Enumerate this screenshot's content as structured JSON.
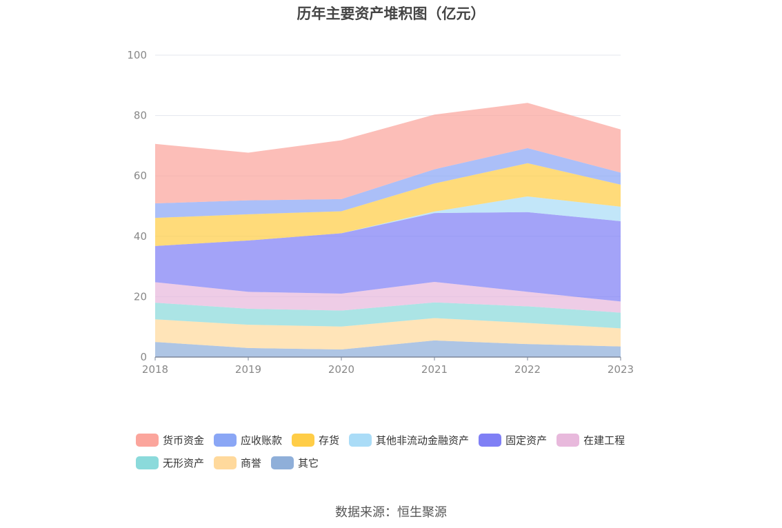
{
  "chart_data": {
    "type": "area",
    "title": "历年主要资产堆积图（亿元）",
    "x": [
      "2018",
      "2019",
      "2020",
      "2021",
      "2022",
      "2023"
    ],
    "ylim": [
      0,
      100
    ],
    "yticks": [
      0,
      20,
      40,
      60,
      80,
      100
    ],
    "grid": true,
    "stacked": true,
    "legend_position": "bottom",
    "series": [
      {
        "name": "其它",
        "color": "#8fafd9",
        "values": [
          5.0,
          3.0,
          2.5,
          5.5,
          4.3,
          3.5
        ]
      },
      {
        "name": "商誉",
        "color": "#ffd99c",
        "values": [
          7.5,
          7.7,
          7.6,
          7.4,
          7.0,
          6.0
        ]
      },
      {
        "name": "无形资产",
        "color": "#8bdadb",
        "values": [
          5.5,
          5.3,
          5.3,
          5.2,
          5.5,
          5.2
        ]
      },
      {
        "name": "在建工程",
        "color": "#e8b9dc",
        "values": [
          6.8,
          5.6,
          5.6,
          6.8,
          4.8,
          3.7
        ]
      },
      {
        "name": "固定资产",
        "color": "#7f7ff5",
        "values": [
          12.0,
          17.0,
          20.0,
          22.8,
          26.4,
          26.6
        ]
      },
      {
        "name": "其他非流动金融资产",
        "color": "#aadcf7",
        "values": [
          0,
          0,
          0,
          0.5,
          5.2,
          4.8
        ]
      },
      {
        "name": "存货",
        "color": "#ffcd47",
        "values": [
          9.3,
          8.7,
          7.3,
          9.3,
          11.0,
          7.3
        ]
      },
      {
        "name": "应收账款",
        "color": "#8aa6f5",
        "values": [
          4.8,
          4.6,
          4.0,
          4.7,
          5.0,
          4.0
        ]
      },
      {
        "name": "货币资金",
        "color": "#fba59c",
        "values": [
          19.7,
          15.8,
          19.5,
          18.1,
          15.0,
          14.3
        ]
      }
    ],
    "source": "数据来源：恒生聚源"
  },
  "legend_rows": [
    [
      {
        "label": "货币资金",
        "color": "#fba59c"
      },
      {
        "label": "应收账款",
        "color": "#8aa6f5"
      },
      {
        "label": "存货",
        "color": "#ffcd47"
      },
      {
        "label": "其他非流动金融资产",
        "color": "#aadcf7"
      },
      {
        "label": "固定资产",
        "color": "#7f7ff5"
      },
      {
        "label": "在建工程",
        "color": "#e8b9dc"
      }
    ],
    [
      {
        "label": "无形资产",
        "color": "#8bdadb"
      },
      {
        "label": "商誉",
        "color": "#ffd99c"
      },
      {
        "label": "其它",
        "color": "#8fafd9"
      }
    ]
  ]
}
